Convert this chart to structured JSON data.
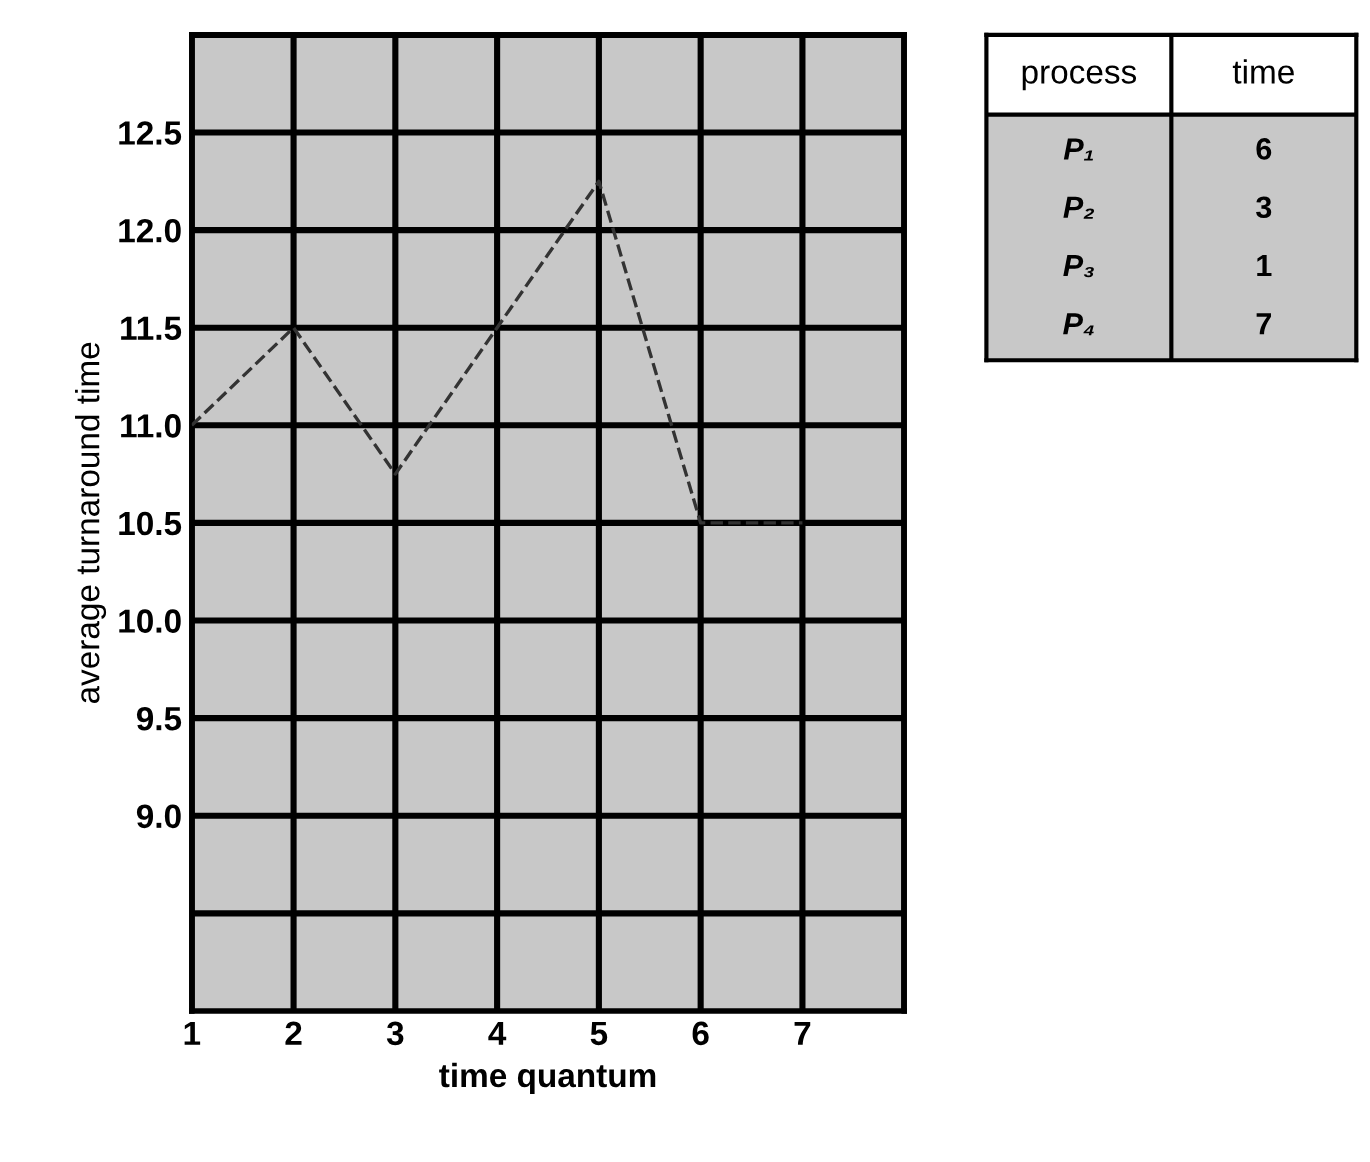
{
  "chart_data": [
    {
      "type": "line",
      "xlabel": "time quantum",
      "ylabel": "average turnaround time",
      "x": [
        1,
        2,
        3,
        4,
        5,
        6,
        7
      ],
      "series": [
        {
          "color": "#333333",
          "values": [
            11.0,
            11.5,
            10.75,
            11.5,
            12.25,
            10.5,
            10.5
          ]
        }
      ],
      "xlim": [
        1,
        8
      ],
      "xticks": [
        1,
        2,
        3,
        4,
        5,
        6,
        7,
        {
          "value": 8,
          "label": null
        }
      ],
      "ylim": [
        8.0,
        13.0
      ],
      "yticks": [
        {
          "value": 8.5,
          "label": null
        },
        {
          "value": 9,
          "label": "9.0"
        },
        {
          "value": 9.5,
          "label": "9.5"
        },
        {
          "value": 10,
          "label": "10.0"
        },
        {
          "value": 10.5,
          "label": "10.5"
        },
        {
          "value": 11,
          "label": "11.0"
        },
        {
          "value": 11.5,
          "label": "11.5"
        },
        {
          "value": 12,
          "label": "12.0"
        },
        {
          "value": 12.5,
          "label": "12.5"
        },
        {
          "value": 13,
          "label": null
        }
      ],
      "grid": true,
      "marker": "none",
      "line_style": "dashed"
    },
    {
      "type": "other",
      "xlabel": "process",
      "ylabel": "time",
      "categories": [
        "P₁",
        "P₂",
        "P₃",
        "P₄"
      ],
      "values": [
        6,
        3,
        1,
        7
      ],
      "data_labels": true
    }
  ]
}
